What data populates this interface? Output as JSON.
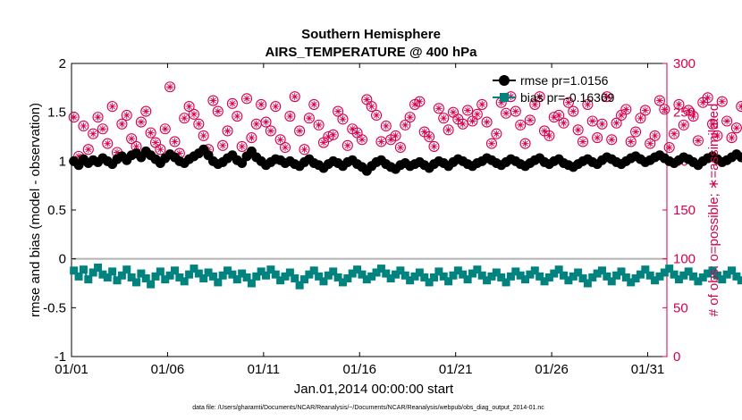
{
  "chart_data": {
    "type": "line",
    "title": "Southern Hemisphere",
    "subtitle": "AIRS_TEMPERATURE @ 400 hPa",
    "xlabel": "Jan.01,2014 00:00:00 start",
    "ylabel_left": "rmse and bias (model - observation)",
    "ylabel_right": "# of obs: o=possible; ∗=assimilated",
    "footnote": "data file: /Users/gharamti/Documents/NCAR/Reanalysis/~/Documents/NCAR/Reanalysis/webpub/obs_diag_output_2014-01.nc",
    "x_ticks": [
      "01/01",
      "01/06",
      "01/11",
      "01/16",
      "01/21",
      "01/26",
      "01/31"
    ],
    "x_range_days": [
      1,
      32
    ],
    "ylim_left": [
      -1,
      2
    ],
    "ylim_right": [
      0,
      300
    ],
    "y_ticks_left": [
      "-1",
      "-0.5",
      "0",
      "0.5",
      "1",
      "1.5",
      "2"
    ],
    "y_ticks_right": [
      "0",
      "50",
      "100",
      "150",
      "200",
      "250",
      "300"
    ],
    "legend": {
      "placement": "top-right",
      "entries": [
        "rmse pr=1.0156",
        "bias pr=-0.16369"
      ]
    },
    "colors": {
      "rmse": "#000000",
      "bias": "#00827f",
      "obs": "#d6004e",
      "zero_line": "#b3b3b3"
    },
    "series": [
      {
        "name": "rmse pr=1.0156",
        "axis": "left",
        "values": [
          1.0,
          0.96,
          1.02,
          0.98,
          1.01,
          0.99,
          1.03,
          1.0,
          0.97,
          1.02,
          1.05,
          1.01,
          1.06,
          1.08,
          1.04,
          1.1,
          1.06,
          1.02,
          0.98,
          1.03,
          1.07,
          1.04,
          1.0,
          0.98,
          1.02,
          1.05,
          1.08,
          1.12,
          1.06,
          1.0,
          0.97,
          0.99,
          1.03,
          1.06,
          1.01,
          0.98,
          1.05,
          1.1,
          1.04,
          1.0,
          0.96,
          0.99,
          1.02,
          1.01,
          0.98,
          1.0,
          0.97,
          0.95,
          0.99,
          1.02,
          0.98,
          0.96,
          0.93,
          0.97,
          1.0,
          0.98,
          0.95,
          0.99,
          1.01,
          0.97,
          0.94,
          0.9,
          0.95,
          0.99,
          1.01,
          0.97,
          0.94,
          0.92,
          0.96,
          0.98,
          0.95,
          0.97,
          0.99,
          0.96,
          0.93,
          0.97,
          1.0,
          0.98,
          0.95,
          0.99,
          1.02,
          1.0,
          0.97,
          0.95,
          0.98,
          1.0,
          1.03,
          1.01,
          0.98,
          0.96,
          0.99,
          1.02,
          1.0,
          0.97,
          0.95,
          0.98,
          1.01,
          1.03,
          0.99,
          0.97,
          1.0,
          1.02,
          0.98,
          0.96,
          0.94,
          0.97,
          1.0,
          1.02,
          0.99,
          0.97,
          1.01,
          1.04,
          1.02,
          0.99,
          0.97,
          1.0,
          1.03,
          1.05,
          1.02,
          0.99,
          1.01,
          1.04,
          1.06,
          1.03,
          1.0,
          0.98,
          1.01,
          1.04,
          1.02,
          0.99,
          0.96,
          1.0,
          1.03,
          1.05,
          1.02,
          0.99,
          1.01,
          1.04,
          1.07,
          1.04,
          1.01,
          1.03,
          1.06,
          1.08,
          1.05,
          1.02
        ]
      },
      {
        "name": "bias pr=-0.16369",
        "axis": "left",
        "values": [
          -0.12,
          -0.18,
          -0.11,
          -0.21,
          -0.14,
          -0.09,
          -0.16,
          -0.19,
          -0.13,
          -0.22,
          -0.17,
          -0.11,
          -0.19,
          -0.24,
          -0.15,
          -0.2,
          -0.26,
          -0.18,
          -0.13,
          -0.21,
          -0.17,
          -0.12,
          -0.19,
          -0.23,
          -0.16,
          -0.1,
          -0.15,
          -0.2,
          -0.14,
          -0.18,
          -0.24,
          -0.17,
          -0.12,
          -0.16,
          -0.21,
          -0.15,
          -0.19,
          -0.25,
          -0.18,
          -0.13,
          -0.17,
          -0.11,
          -0.16,
          -0.22,
          -0.18,
          -0.14,
          -0.2,
          -0.27,
          -0.21,
          -0.16,
          -0.12,
          -0.18,
          -0.23,
          -0.17,
          -0.13,
          -0.19,
          -0.24,
          -0.2,
          -0.15,
          -0.11,
          -0.16,
          -0.21,
          -0.18,
          -0.14,
          -0.1,
          -0.15,
          -0.2,
          -0.16,
          -0.12,
          -0.17,
          -0.22,
          -0.18,
          -0.14,
          -0.19,
          -0.24,
          -0.19,
          -0.13,
          -0.18,
          -0.23,
          -0.17,
          -0.12,
          -0.16,
          -0.21,
          -0.15,
          -0.11,
          -0.17,
          -0.22,
          -0.18,
          -0.14,
          -0.19,
          -0.24,
          -0.18,
          -0.13,
          -0.17,
          -0.21,
          -0.16,
          -0.12,
          -0.18,
          -0.23,
          -0.19,
          -0.15,
          -0.11,
          -0.17,
          -0.22,
          -0.18,
          -0.14,
          -0.2,
          -0.25,
          -0.19,
          -0.15,
          -0.12,
          -0.18,
          -0.23,
          -0.17,
          -0.13,
          -0.19,
          -0.24,
          -0.2,
          -0.16,
          -0.11,
          -0.17,
          -0.22,
          -0.18,
          -0.14,
          -0.1,
          -0.16,
          -0.21,
          -0.17,
          -0.13,
          -0.18,
          -0.23,
          -0.19,
          -0.15,
          -0.12,
          -0.17,
          -0.21,
          -0.16,
          -0.12,
          -0.18,
          -0.22,
          -0.16,
          -0.12,
          -0.17,
          -0.21
        ]
      },
      {
        "name": "obs possible",
        "axis": "right",
        "marker": "circle",
        "values": [
          245,
          205,
          236,
          212,
          228,
          245,
          233,
          218,
          256,
          209,
          238,
          247,
          223,
          215,
          240,
          251,
          229,
          219,
          212,
          233,
          276,
          220,
          208,
          244,
          256,
          248,
          238,
          226,
          212,
          262,
          251,
          216,
          231,
          259,
          246,
          215,
          264,
          224,
          238,
          258,
          240,
          231,
          256,
          222,
          214,
          246,
          266,
          231,
          212,
          244,
          258,
          237,
          219,
          225,
          227,
          251,
          243,
          216,
          233,
          229,
          222,
          263,
          256,
          247,
          220,
          236,
          222,
          226,
          214,
          237,
          245,
          258,
          261,
          230,
          225,
          215,
          254,
          244,
          232,
          250,
          243,
          238,
          252,
          241,
          248,
          258,
          240,
          218,
          228,
          260,
          249,
          266,
          251,
          237,
          218,
          242,
          258,
          266,
          231,
          226,
          245,
          247,
          239,
          260,
          251,
          232,
          220,
          258,
          241,
          224,
          238,
          266,
          222,
          239,
          247,
          253,
          220,
          230,
          244,
          252,
          218,
          226,
          262,
          253,
          214,
          228,
          258,
          237,
          252,
          246,
          221,
          260,
          265,
          238,
          226,
          261,
          241,
          224,
          234,
          256
        ]
      },
      {
        "name": "obs assimilated",
        "axis": "right",
        "marker": "asterisk",
        "values": [
          245,
          205,
          236,
          212,
          228,
          245,
          233,
          218,
          256,
          209,
          238,
          247,
          223,
          215,
          240,
          251,
          229,
          219,
          212,
          233,
          276,
          220,
          208,
          244,
          256,
          248,
          238,
          226,
          212,
          262,
          251,
          216,
          231,
          259,
          246,
          215,
          264,
          224,
          238,
          258,
          240,
          231,
          256,
          222,
          214,
          246,
          266,
          231,
          212,
          244,
          258,
          237,
          219,
          225,
          227,
          251,
          243,
          216,
          233,
          229,
          222,
          263,
          256,
          247,
          220,
          236,
          222,
          226,
          214,
          237,
          245,
          258,
          261,
          230,
          225,
          215,
          254,
          244,
          232,
          250,
          243,
          238,
          252,
          241,
          248,
          258,
          240,
          218,
          228,
          260,
          249,
          266,
          251,
          237,
          218,
          242,
          258,
          266,
          231,
          226,
          245,
          247,
          239,
          260,
          251,
          232,
          220,
          258,
          241,
          224,
          238,
          266,
          222,
          239,
          247,
          253,
          220,
          230,
          244,
          252,
          218,
          226,
          262,
          253,
          214,
          228,
          258,
          237,
          252,
          246,
          221,
          260,
          265,
          238,
          226,
          261,
          241,
          224,
          234,
          256
        ]
      }
    ]
  }
}
